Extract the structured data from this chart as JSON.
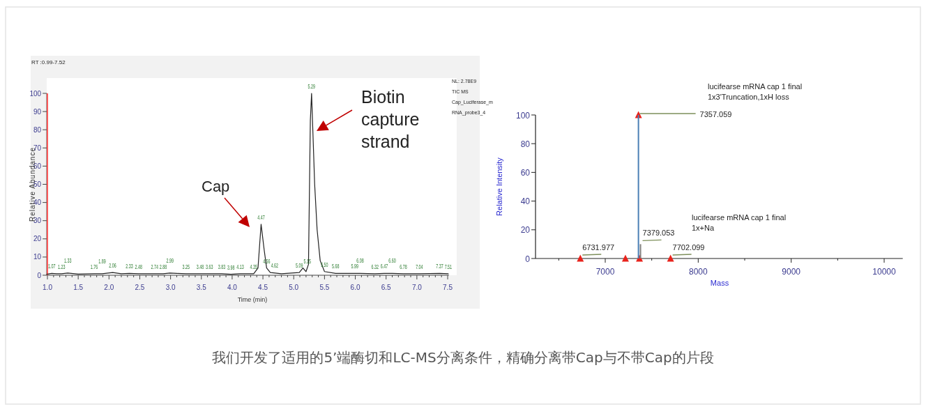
{
  "chart_data": [
    {
      "type": "line",
      "xlabel": "Time (min)",
      "ylabel": "Relative Abundance",
      "xlim": [
        0.99,
        7.52
      ],
      "ylim": [
        0,
        100
      ],
      "xticks": [
        {
          "value": 1,
          "label": "1.0"
        },
        {
          "value": 1.5,
          "label": "1.5"
        },
        {
          "value": 2,
          "label": "2.0"
        },
        {
          "value": 2.5,
          "label": "2.5"
        },
        {
          "value": 3,
          "label": "3.0"
        },
        {
          "value": 3.5,
          "label": "3.5"
        },
        {
          "value": 4,
          "label": "4.0"
        },
        {
          "value": 4.5,
          "label": "4.5"
        },
        {
          "value": 5,
          "label": "5.0"
        },
        {
          "value": 5.5,
          "label": "5.5"
        },
        {
          "value": 6,
          "label": "6.0"
        },
        {
          "value": 6.5,
          "label": "6.5"
        },
        {
          "value": 7,
          "label": "7.0"
        },
        {
          "value": 7.5,
          "label": "7.5"
        },
        {
          "value": 1.1,
          "label": null
        },
        {
          "value": 1.2,
          "label": null
        },
        {
          "value": 1.3,
          "label": null
        },
        {
          "value": 1.4,
          "label": null
        },
        {
          "value": 1.6,
          "label": null
        },
        {
          "value": 1.7,
          "label": null
        },
        {
          "value": 1.8,
          "label": null
        },
        {
          "value": 1.9,
          "label": null
        },
        {
          "value": 2.1,
          "label": null
        },
        {
          "value": 2.2,
          "label": null
        },
        {
          "value": 2.3,
          "label": null
        },
        {
          "value": 2.4,
          "label": null
        },
        {
          "value": 2.6,
          "label": null
        },
        {
          "value": 2.7,
          "label": null
        },
        {
          "value": 2.8,
          "label": null
        },
        {
          "value": 2.9,
          "label": null
        },
        {
          "value": 3.1,
          "label": null
        },
        {
          "value": 3.2,
          "label": null
        },
        {
          "value": 3.3,
          "label": null
        },
        {
          "value": 3.4,
          "label": null
        },
        {
          "value": 3.6,
          "label": null
        },
        {
          "value": 3.7,
          "label": null
        },
        {
          "value": 3.8,
          "label": null
        },
        {
          "value": 3.9,
          "label": null
        },
        {
          "value": 4.1,
          "label": null
        },
        {
          "value": 4.2,
          "label": null
        },
        {
          "value": 4.3,
          "label": null
        },
        {
          "value": 4.4,
          "label": null
        },
        {
          "value": 4.6,
          "label": null
        },
        {
          "value": 4.7,
          "label": null
        },
        {
          "value": 4.8,
          "label": null
        },
        {
          "value": 4.9,
          "label": null
        },
        {
          "value": 5.1,
          "label": null
        },
        {
          "value": 5.2,
          "label": null
        },
        {
          "value": 5.3,
          "label": null
        },
        {
          "value": 5.4,
          "label": null
        },
        {
          "value": 5.6,
          "label": null
        },
        {
          "value": 5.7,
          "label": null
        },
        {
          "value": 5.8,
          "label": null
        },
        {
          "value": 5.9,
          "label": null
        },
        {
          "value": 6.1,
          "label": null
        },
        {
          "value": 6.2,
          "label": null
        },
        {
          "value": 6.3,
          "label": null
        },
        {
          "value": 6.4,
          "label": null
        },
        {
          "value": 6.6,
          "label": null
        },
        {
          "value": 6.7,
          "label": null
        },
        {
          "value": 6.8,
          "label": null
        },
        {
          "value": 6.9,
          "label": null
        },
        {
          "value": 7.1,
          "label": null
        },
        {
          "value": 7.2,
          "label": null
        },
        {
          "value": 7.3,
          "label": null
        },
        {
          "value": 7.4,
          "label": null
        }
      ],
      "yticks": [
        0,
        10,
        20,
        30,
        40,
        50,
        60,
        70,
        80,
        90,
        100
      ],
      "series": [
        {
          "color": "#222222",
          "x": [
            0.99,
            1.07,
            1.15,
            1.23,
            1.33,
            1.5,
            1.76,
            1.89,
            2.06,
            2.2,
            2.33,
            2.48,
            2.6,
            2.74,
            2.88,
            2.99,
            3.1,
            3.25,
            3.48,
            3.63,
            3.83,
            3.98,
            4.13,
            4.35,
            4.42,
            4.47,
            4.52,
            4.56,
            4.62,
            4.8,
            5.09,
            5.15,
            5.2,
            5.24,
            5.27,
            5.29,
            5.31,
            5.34,
            5.38,
            5.43,
            5.5,
            5.68,
            5.99,
            6.08,
            6.32,
            6.47,
            6.6,
            6.78,
            7.04,
            7.37,
            7.51
          ],
          "values": [
            0.5,
            1,
            0.8,
            0.8,
            1.2,
            0.6,
            0.8,
            0.8,
            1.5,
            0.8,
            1,
            0.8,
            0.8,
            0.8,
            0.8,
            1.2,
            1,
            0.8,
            0.8,
            0.8,
            0.8,
            0.5,
            0.8,
            0.8,
            4,
            28,
            14,
            4,
            1.5,
            0.8,
            1.5,
            4,
            2,
            6,
            85,
            100,
            80,
            50,
            25,
            8,
            2,
            1,
            1,
            1,
            0.8,
            1,
            1,
            0.8,
            0.8,
            1,
            0.8
          ]
        }
      ],
      "ref_lines": [
        {
          "axis": "x",
          "value": 1.0,
          "color": "#ff5a5a"
        }
      ],
      "annotations": [
        "RT :0.99-7.52",
        "NL: 2.78E9",
        "TIC MS",
        "Cap_Luciferase_m",
        "RNA_probe3_4",
        "Cap",
        "Biotin\ncapture\nstrand",
        {
          "text": "1.07",
          "x": 1.07,
          "y": 1
        },
        {
          "text": "1.23",
          "x": 1.23,
          "y": 0.8
        },
        {
          "text": "1.33",
          "x": 1.33,
          "y": 1.2
        },
        {
          "text": "1.76",
          "x": 1.76,
          "y": 0.8
        },
        {
          "text": "1.89",
          "x": 1.89,
          "y": 0.8
        },
        {
          "text": "2.06",
          "x": 2.06,
          "y": 1.5
        },
        {
          "text": "2.33",
          "x": 2.33,
          "y": 1
        },
        {
          "text": "2.48",
          "x": 2.48,
          "y": 0.8
        },
        {
          "text": "2.74",
          "x": 2.74,
          "y": 0.8
        },
        {
          "text": "2.88",
          "x": 2.88,
          "y": 0.8
        },
        {
          "text": "2.99",
          "x": 2.99,
          "y": 1.2
        },
        {
          "text": "3.25",
          "x": 3.25,
          "y": 0.8
        },
        {
          "text": "3.48",
          "x": 3.48,
          "y": 0.8
        },
        {
          "text": "3.63",
          "x": 3.63,
          "y": 0.8
        },
        {
          "text": "3.83",
          "x": 3.83,
          "y": 0.8
        },
        {
          "text": "3.98",
          "x": 3.98,
          "y": 0.5
        },
        {
          "text": "4.13",
          "x": 4.13,
          "y": 0.8
        },
        {
          "text": "4.35",
          "x": 4.35,
          "y": 0.8
        },
        {
          "text": "4.47",
          "x": 4.47,
          "y": 28
        },
        {
          "text": "4.56",
          "x": 4.56,
          "y": 4
        },
        {
          "text": "4.62",
          "x": 4.62,
          "y": 1.5
        },
        {
          "text": "5.09",
          "x": 5.09,
          "y": 1.5
        },
        {
          "text": "5.15",
          "x": 5.15,
          "y": 4
        },
        {
          "text": "5.29",
          "x": 5.29,
          "y": 100
        },
        {
          "text": "5.50",
          "x": 5.5,
          "y": 2
        },
        {
          "text": "5.68",
          "x": 5.68,
          "y": 1
        },
        {
          "text": "5.99",
          "x": 5.99,
          "y": 1
        },
        {
          "text": "6.08",
          "x": 6.08,
          "y": 1
        },
        {
          "text": "6.32",
          "x": 6.32,
          "y": 0.8
        },
        {
          "text": "6.47",
          "x": 6.47,
          "y": 1
        },
        {
          "text": "6.60",
          "x": 6.6,
          "y": 1
        },
        {
          "text": "6.78",
          "x": 6.78,
          "y": 0.8
        },
        {
          "text": "7.04",
          "x": 7.04,
          "y": 0.8
        },
        {
          "text": "7.37",
          "x": 7.37,
          "y": 1
        },
        {
          "text": "7.51",
          "x": 7.51,
          "y": 0.8
        }
      ]
    },
    {
      "type": "bar",
      "xlabel": "Mass",
      "ylabel": "Relative Intensity",
      "xlim": [
        6250,
        10200
      ],
      "ylim": [
        0,
        100
      ],
      "xticks": [
        {
          "value": 6500,
          "label": null
        },
        7000,
        {
          "value": 7500,
          "label": null
        },
        8000,
        {
          "value": 8500,
          "label": null
        },
        9000,
        {
          "value": 9500,
          "label": null
        },
        10000
      ],
      "yticks": [
        0,
        20,
        40,
        60,
        80,
        100
      ],
      "marker": "triangle",
      "series": [
        {
          "type": "scatter",
          "color": "#e8231c",
          "x": [
            6731.977,
            7217,
            7357.059,
            7368,
            7702.099
          ],
          "values": [
            0,
            0,
            100,
            0,
            0
          ]
        },
        {
          "type": "bar",
          "x": [
            7357.059,
            7379.053
          ],
          "values": [
            100,
            10
          ],
          "colors": [
            "#4a7fb5",
            "#808080"
          ]
        }
      ],
      "annotations": [
        "lucifearse mRNA cap 1 final\n1x3'Truncation,1xH loss",
        "lucifearse mRNA cap 1 final\n1x+Na",
        {
          "text": "6731.977",
          "x": 6731.977,
          "y": 0
        },
        {
          "text": "7357.059",
          "x": 7357.059,
          "y": 100
        },
        {
          "text": "7379.053",
          "x": 7379.053,
          "y": 10
        },
        {
          "text": "7702.099",
          "x": 7702.099,
          "y": 0
        }
      ]
    },
    {
      "type": "other",
      "title": "我们开发了适用的5’端酶切和LC-MS分离条件，精确分离带Cap与不带Cap的片段"
    }
  ]
}
